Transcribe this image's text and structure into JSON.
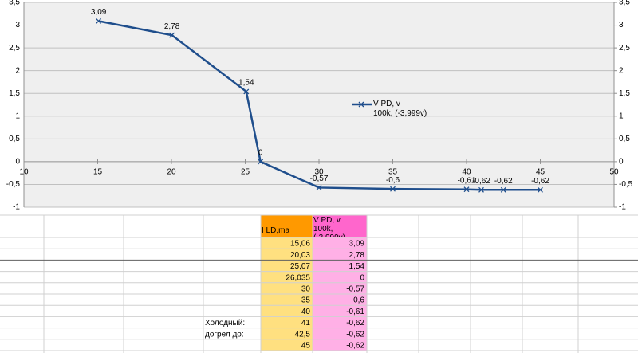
{
  "chart_data": {
    "type": "line",
    "x": [
      15.06,
      20.03,
      25.07,
      26.035,
      30,
      35,
      40,
      41,
      42.5,
      45
    ],
    "series": [
      {
        "name": "V PD, v\n100k, (-3,999v)",
        "color": "#1f4e8c",
        "values": [
          3.09,
          2.78,
          1.54,
          0,
          -0.57,
          -0.6,
          -0.61,
          -0.62,
          -0.62,
          -0.62
        ],
        "value_labels": [
          "3,09",
          "2,78",
          "1,54",
          "0",
          "-0,57",
          "-0,6",
          "-0,61",
          "-0,62",
          "-0,62",
          "-0,62"
        ]
      }
    ],
    "xlim": [
      10,
      50
    ],
    "xticks": [
      10,
      15,
      20,
      25,
      30,
      35,
      40,
      45,
      50
    ],
    "ylim": [
      -1,
      3.5
    ],
    "yticks": [
      -1,
      {
        "value": -0.5,
        "label": "-0,5"
      },
      0,
      {
        "value": 0.5,
        "label": "0,5"
      },
      1,
      {
        "value": 1.5,
        "label": "1,5"
      },
      2,
      {
        "value": 2.5,
        "label": "2,5"
      },
      3,
      {
        "value": 3.5,
        "label": "3,5"
      }
    ],
    "y2lim": [
      -1,
      3.5
    ],
    "y2ticks": [
      -1,
      {
        "value": -0.5,
        "label": "-0,5"
      },
      0,
      {
        "value": 0.5,
        "label": "0,5"
      },
      1,
      {
        "value": 1.5,
        "label": "1,5"
      },
      2,
      {
        "value": 2.5,
        "label": "2,5"
      },
      3,
      {
        "value": 3.5,
        "label": "3,5"
      }
    ],
    "grid": true
  },
  "table": {
    "header": [
      "I LD,ma",
      "V PD, v\n100k, (-3,999v)"
    ],
    "rows": [
      {
        "cells": [
          "15,06",
          "3,09"
        ]
      },
      {
        "cells": [
          "20,03",
          "2,78"
        ]
      },
      {
        "cells": [
          "25,07",
          "1,54"
        ]
      },
      {
        "cells": [
          "26,035",
          "0"
        ]
      },
      {
        "cells": [
          "30",
          "-0,57"
        ]
      },
      {
        "cells": [
          "35",
          "-0,6"
        ]
      },
      {
        "cells": [
          "40",
          "-0,61"
        ]
      },
      {
        "cells": [
          "41",
          "-0,62"
        ],
        "note": "Холодный:"
      },
      {
        "cells": [
          "42,5",
          "-0,62"
        ],
        "note": "догрел до:"
      },
      {
        "cells": [
          "45",
          "-0,62"
        ]
      }
    ]
  }
}
